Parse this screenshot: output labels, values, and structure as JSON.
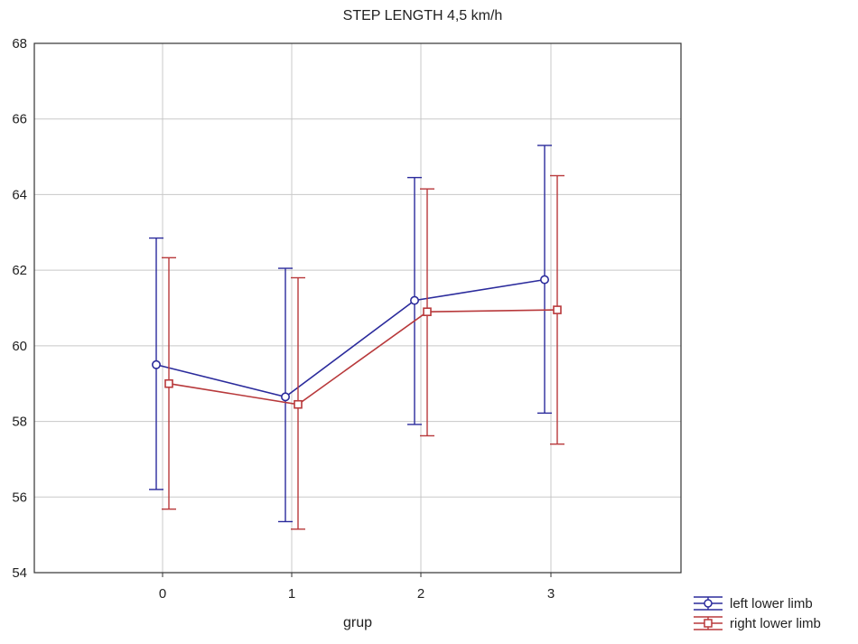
{
  "chart_data": {
    "type": "line",
    "title": "STEP LENGTH 4,5 km/h",
    "xlabel": "grup",
    "ylabel": "",
    "categories": [
      "0",
      "1",
      "2",
      "3"
    ],
    "ylim": [
      54,
      68
    ],
    "yticks": [
      "54",
      "56",
      "58",
      "60",
      "62",
      "64",
      "66",
      "68"
    ],
    "grid": true,
    "legend_position": "bottom-right",
    "series": [
      {
        "name": "left lower limb",
        "color": "#2b2b9c",
        "marker": "circle",
        "values": [
          59.5,
          58.65,
          61.2,
          61.75
        ],
        "lower": [
          56.2,
          55.35,
          57.92,
          58.22
        ],
        "upper": [
          62.85,
          62.05,
          64.45,
          65.3
        ]
      },
      {
        "name": "right lower limb",
        "color": "#b8393b",
        "marker": "square",
        "values": [
          59.0,
          58.45,
          60.9,
          60.95
        ],
        "lower": [
          55.68,
          55.15,
          57.62,
          57.4
        ],
        "upper": [
          62.33,
          61.8,
          64.15,
          64.5
        ]
      }
    ]
  }
}
